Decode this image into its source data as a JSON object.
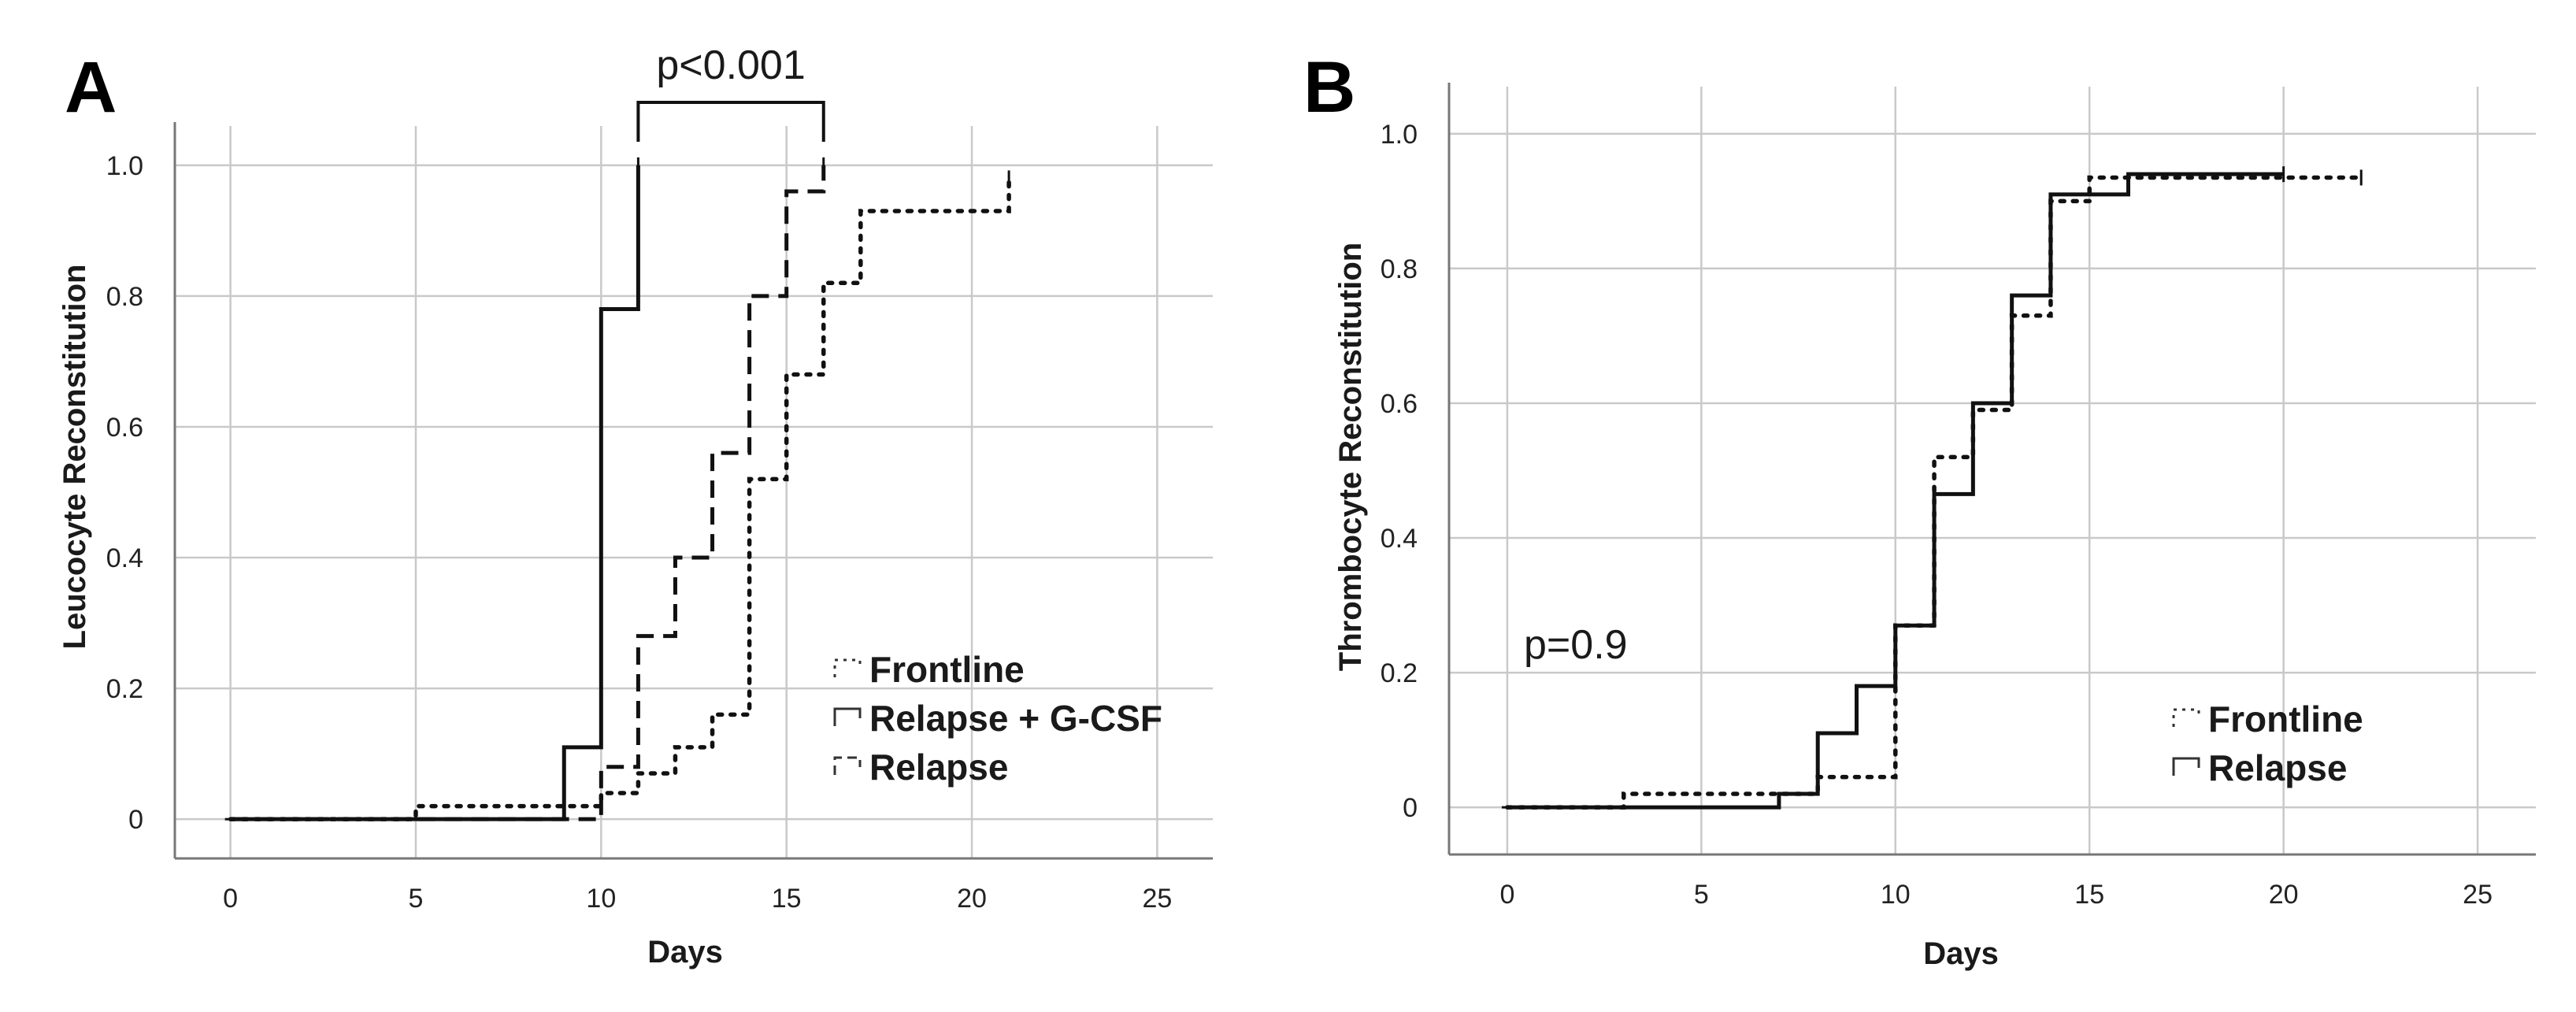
{
  "chart_data": [
    {
      "type": "line",
      "style": "step",
      "panel_label": "A",
      "title": "",
      "xlabel": "Days",
      "ylabel": "Leucocyte Reconstitution",
      "xlim": [
        -1.5,
        26.5
      ],
      "ylim": [
        -0.06,
        1.06
      ],
      "xticks": [
        0,
        5,
        10,
        15,
        20,
        25
      ],
      "yticks": [
        0,
        0.2,
        0.4,
        0.6,
        0.8,
        1.0
      ],
      "ytick_labels": [
        "0",
        "0.2",
        "0.4",
        "0.6",
        "0.8",
        "1.0"
      ],
      "grid": true,
      "legend_position": "bottom-right",
      "annotation": {
        "text": "p<0.001",
        "from_x": 11,
        "to_x": 16
      },
      "series": [
        {
          "name": "Frontline",
          "dash": "dotted",
          "x": [
            0,
            5,
            10,
            11,
            12,
            13,
            14,
            15,
            16,
            17,
            21
          ],
          "y": [
            0,
            0.02,
            0.04,
            0.07,
            0.11,
            0.16,
            0.52,
            0.68,
            0.82,
            0.93,
            0.98
          ]
        },
        {
          "name": "Relapse + G-CSF",
          "dash": "solid",
          "x": [
            0,
            9,
            10,
            11
          ],
          "y": [
            0,
            0.11,
            0.78,
            1.0
          ]
        },
        {
          "name": "Relapse",
          "dash": "dashed",
          "x": [
            0,
            10,
            11,
            12,
            13,
            14,
            15,
            16
          ],
          "y": [
            0,
            0.08,
            0.28,
            0.4,
            0.56,
            0.8,
            0.96,
            1.0
          ]
        }
      ]
    },
    {
      "type": "line",
      "style": "step",
      "panel_label": "B",
      "title": "",
      "xlabel": "Days",
      "ylabel": "Thrombocyte Reconstitution",
      "xlim": [
        -1.5,
        26.5
      ],
      "ylim": [
        -0.07,
        1.07
      ],
      "xticks": [
        0,
        5,
        10,
        15,
        20,
        25
      ],
      "yticks": [
        0,
        0.2,
        0.4,
        0.6,
        0.8,
        1.0
      ],
      "ytick_labels": [
        "0",
        "0.2",
        "0.4",
        "0.6",
        "0.8",
        "1.0"
      ],
      "grid": true,
      "legend_position": "bottom-right",
      "annotation": {
        "text": "p=0.9"
      },
      "series": [
        {
          "name": "Frontline",
          "dash": "dotted",
          "x": [
            0,
            3,
            8,
            10,
            11,
            12,
            13,
            14,
            15,
            22
          ],
          "y": [
            0,
            0.02,
            0.045,
            0.27,
            0.52,
            0.59,
            0.73,
            0.9,
            0.935,
            0.935
          ]
        },
        {
          "name": "Relapse",
          "dash": "solid",
          "x": [
            0,
            7,
            8,
            9,
            10,
            11,
            12,
            13,
            14,
            16,
            20
          ],
          "y": [
            0,
            0.02,
            0.11,
            0.18,
            0.27,
            0.465,
            0.6,
            0.76,
            0.91,
            0.94,
            0.94
          ]
        }
      ]
    }
  ]
}
